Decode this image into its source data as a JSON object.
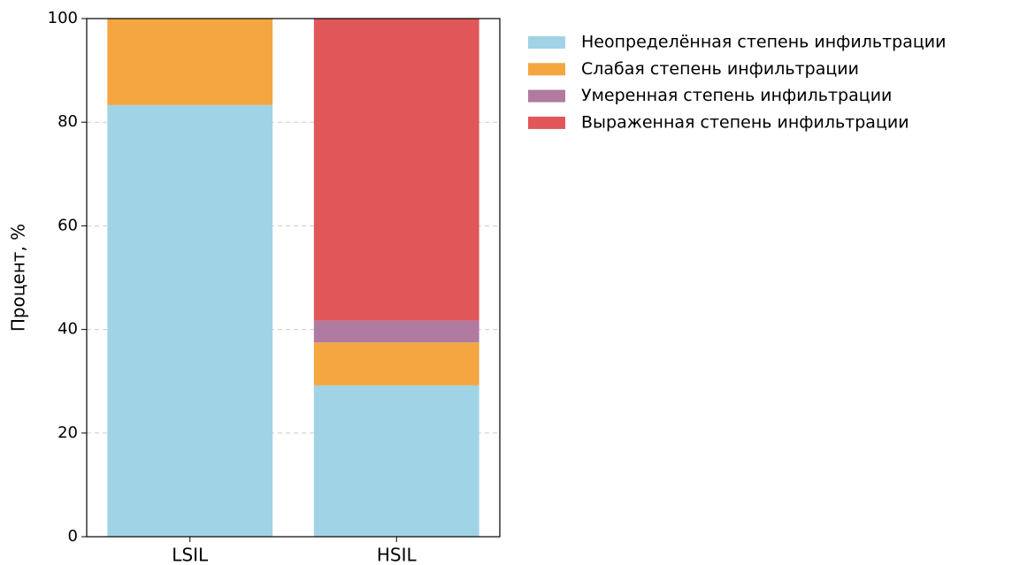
{
  "chart_data": {
    "type": "stacked_bar",
    "y_label": "Процент, %",
    "categories": [
      "LSIL",
      "HSIL"
    ],
    "series": [
      {
        "name": "Неопределённая степень инфильтрации",
        "color": "#a0d3e6",
        "values": [
          83.3,
          29.2
        ]
      },
      {
        "name": "Слабая степень инфильтрации",
        "color": "#f4a641",
        "values": [
          16.7,
          8.3
        ]
      },
      {
        "name": "Умеренная степень инфильтрации",
        "color": "#b07aa1",
        "values": [
          0,
          4.2
        ]
      },
      {
        "name": "Выраженная степень инфильтрации",
        "color": "#e15759",
        "values": [
          0,
          58.3
        ]
      }
    ],
    "ylim": [
      0,
      100
    ],
    "yticks": [
      0,
      20,
      40,
      60,
      80,
      100
    ],
    "grid": true,
    "legend": "outside right"
  }
}
